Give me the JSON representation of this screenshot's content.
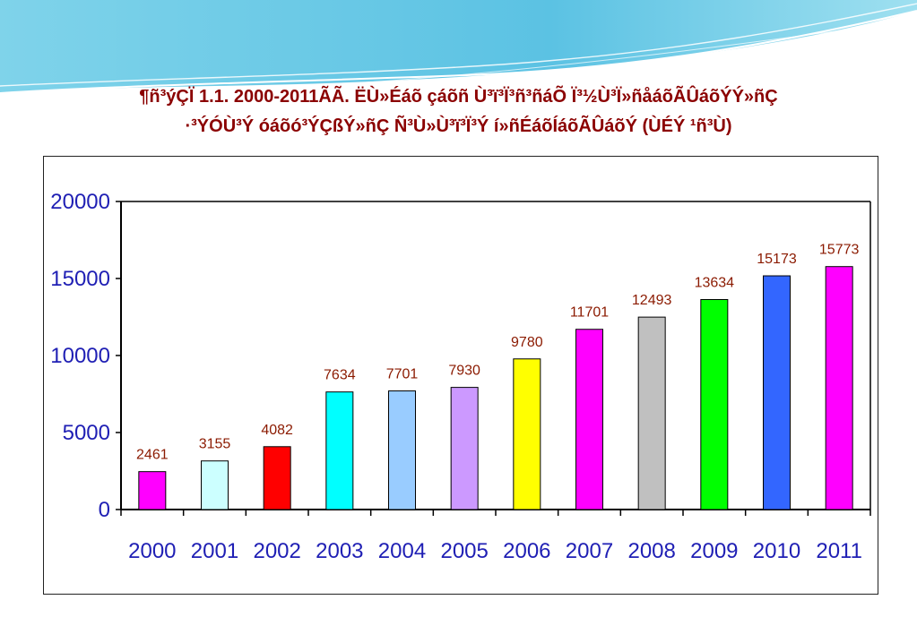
{
  "page": {
    "title_line1": "¶ñ³ýÇÏ 1.1. 2000-2011ÃÃ. ËÙ»Éáõ çáõñ Ù³ï³Ï³ñ³ñáÕ Ï³½Ù³Ï»ñåáõÃÛáõÝÝ»ñÇ",
    "title_line2": "·³ÝÓÙ³Ý óáõó³ÝÇßÝ»ñÇ Ñ³Ù»Ù³ï³Ï³Ý í»ñÉáõÍáõÃÛáõÝ (ÙÉÝ ¹ñ³Ù)"
  },
  "colors": {
    "title": "#8b0000",
    "ticks": "#1f1fb4",
    "data_labels": "#8b1a00",
    "bars": [
      "#ff00ff",
      "#ccffff",
      "#ff0000",
      "#00ffff",
      "#99ccff",
      "#cc99ff",
      "#ffff00",
      "#ff00ff",
      "#c0c0c0",
      "#00ff00",
      "#3366ff",
      "#ff00ff"
    ]
  },
  "chart_data": {
    "type": "bar",
    "categories": [
      "2000",
      "2001",
      "2002",
      "2003",
      "2004",
      "2005",
      "2006",
      "2007",
      "2008",
      "2009",
      "2010",
      "2011"
    ],
    "values": [
      2461,
      3155,
      4082,
      7634,
      7701,
      7930,
      9780,
      11701,
      12493,
      13634,
      15173,
      15773
    ],
    "data_labels": [
      "2461",
      "3155",
      "4082",
      "7634",
      "7701",
      "7930",
      "9780",
      "11701",
      "12493",
      "13634",
      "15173",
      "15773"
    ],
    "title": "",
    "xlabel": "",
    "ylabel": "",
    "ylim": [
      0,
      20000
    ],
    "yticks": [
      "0",
      "5000",
      "10000",
      "15000",
      "20000"
    ],
    "grid": false,
    "legend": "none"
  }
}
